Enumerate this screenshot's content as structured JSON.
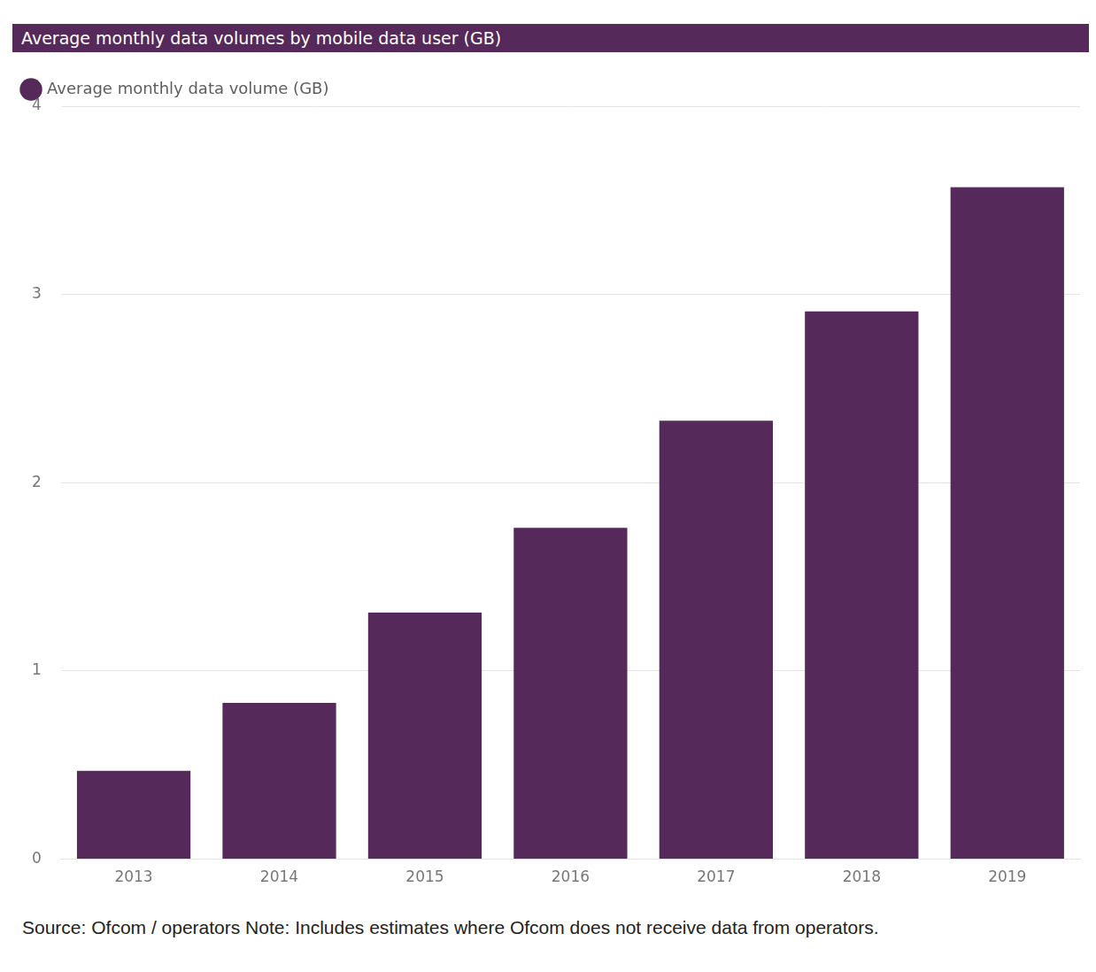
{
  "chart_data": {
    "type": "bar",
    "title": "Average monthly data volumes by mobile data user (GB)",
    "categories": [
      "2013",
      "2014",
      "2015",
      "2016",
      "2017",
      "2018",
      "2019"
    ],
    "series": [
      {
        "name": "Average monthly data volume (GB)",
        "color": "#552a5a",
        "values": [
          0.47,
          0.83,
          1.31,
          1.76,
          2.33,
          2.91,
          3.57
        ]
      }
    ],
    "ylim": [
      0,
      4
    ],
    "yticks": [
      0,
      1,
      2,
      3,
      4
    ],
    "grid": true,
    "legend": "top-left",
    "source": "Source: Ofcom / operators Note: Includes estimates where Ofcom does not receive data from operators."
  }
}
